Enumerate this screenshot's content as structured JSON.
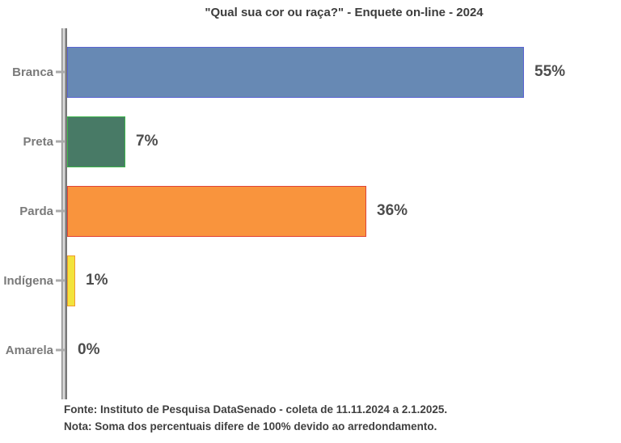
{
  "title": "\"Qual sua cor ou raça?\" - Enquete on-line - 2024",
  "chart_data": {
    "type": "bar",
    "orientation": "horizontal",
    "title": "\"Qual sua cor ou raça?\" - Enquete on-line - 2024",
    "categories": [
      "Branca",
      "Preta",
      "Parda",
      "Indígena",
      "Amarela"
    ],
    "values": [
      55,
      7,
      36,
      1,
      0
    ],
    "value_labels": [
      "55%",
      "7%",
      "36%",
      "1%",
      "0%"
    ],
    "bar_colors": [
      "#6789b4",
      "#487a66",
      "#f9943d",
      "#f2e33c",
      "#ffffff"
    ],
    "bar_border_colors": [
      "#5a64d2",
      "#3cb44a",
      "#e04338",
      "#f09a2f",
      "#ffffff"
    ],
    "xlim": [
      0,
      60
    ],
    "grid": false,
    "legend": false,
    "value_axis_visible": false
  },
  "footer": {
    "source": "Fonte: Instituto de Pesquisa DataSenado - coleta de 11.11.2024 a 2.1.2025.",
    "note": "Nota: Soma dos percentuais difere de 100% devido ao arredondamento."
  },
  "colors": {
    "background": "#ffffff",
    "title_text": "#3c3c3c",
    "category_text": "#7a7a7a",
    "value_text": "#4d4d4d",
    "footer_text": "#3f3f3f",
    "axis": "#9a9a9a"
  }
}
